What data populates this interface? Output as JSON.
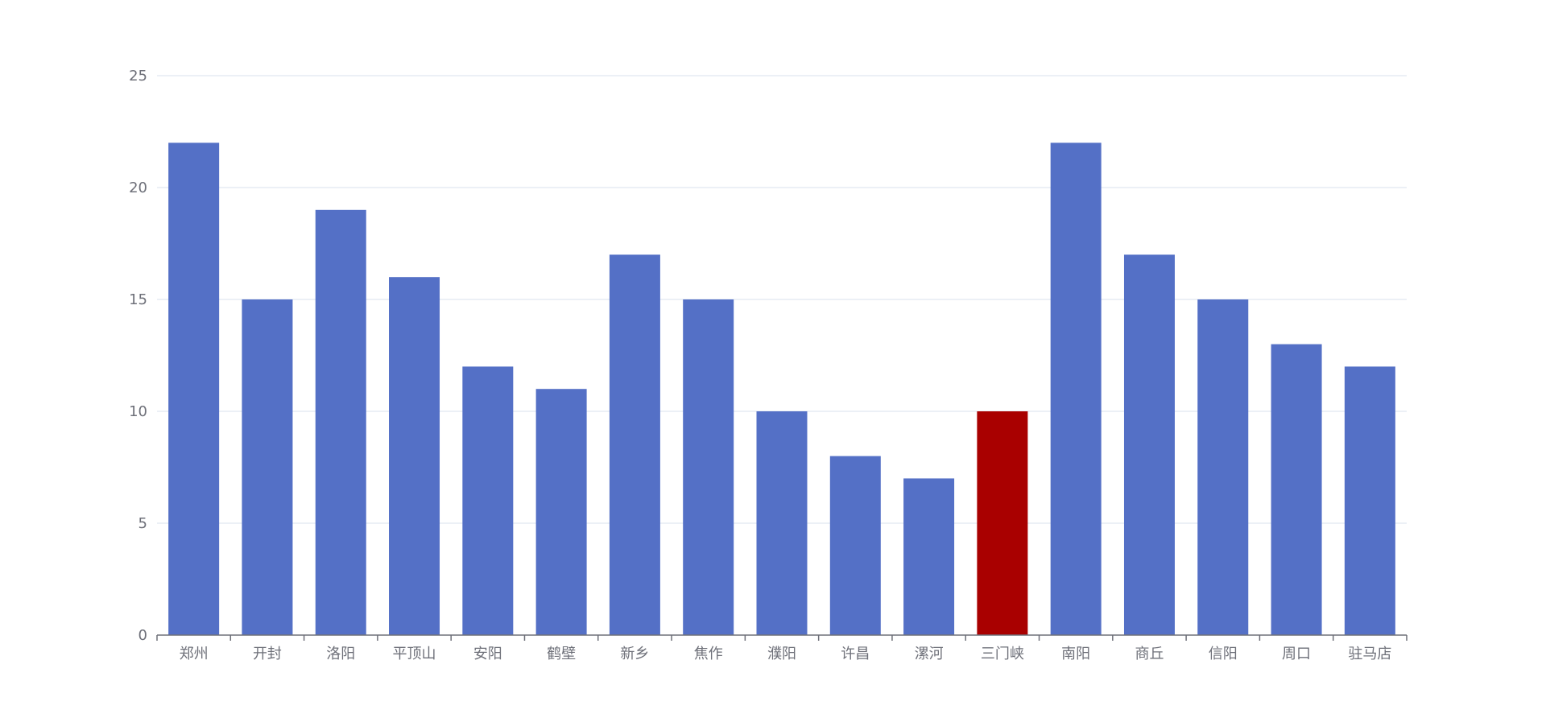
{
  "chart_data": {
    "type": "bar",
    "title": "",
    "xlabel": "",
    "ylabel": "",
    "categories": [
      "郑州",
      "开封",
      "洛阳",
      "平顶山",
      "安阳",
      "鹤壁",
      "新乡",
      "焦作",
      "濮阳",
      "许昌",
      "漯河",
      "三门峡",
      "南阳",
      "商丘",
      "信阳",
      "周口",
      "驻马店"
    ],
    "values": [
      22,
      15,
      19,
      16,
      12,
      11,
      17,
      15,
      10,
      8,
      7,
      10,
      22,
      17,
      15,
      13,
      12
    ],
    "highlight_index": 11,
    "ylim": [
      0,
      25
    ],
    "yticks": [
      0,
      5,
      10,
      15,
      20,
      25
    ],
    "grid": true,
    "colors": {
      "bar": "#5470c6",
      "highlight": "#a90000",
      "grid": "#e0e6f1",
      "axis": "#6e7079",
      "label": "#6e7079"
    }
  }
}
